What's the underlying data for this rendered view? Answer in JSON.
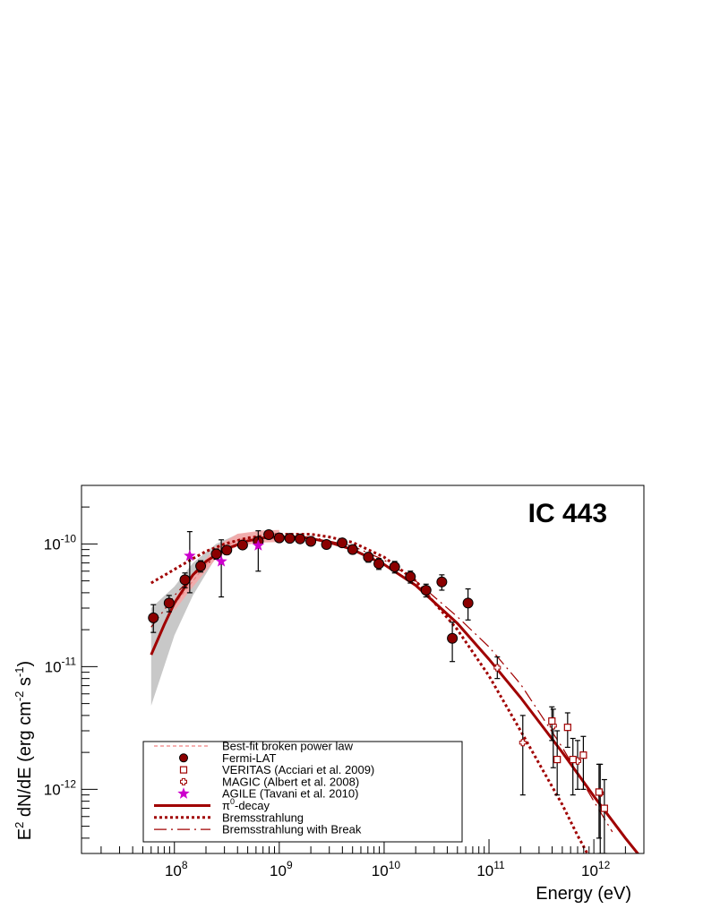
{
  "chart_data": {
    "type": "scatter",
    "title": "",
    "annotation": "IC 443",
    "xlabel": "Energy (eV)",
    "ylabel_parts": [
      "E",
      "2",
      " dN/dE (erg cm",
      "-2",
      " s",
      "-1",
      ")"
    ],
    "xscale": "log",
    "yscale": "log",
    "xlim": [
      13000000.0,
      3000000000000.0
    ],
    "ylim": [
      3e-13,
      3e-10
    ],
    "x_tick_labels": [
      {
        "base": "10",
        "exp": "8",
        "value": 100000000.0
      },
      {
        "base": "10",
        "exp": "9",
        "value": 1000000000.0
      },
      {
        "base": "10",
        "exp": "10",
        "value": 10000000000.0
      },
      {
        "base": "10",
        "exp": "11",
        "value": 100000000000.0
      },
      {
        "base": "10",
        "exp": "12",
        "value": 1000000000000.0
      }
    ],
    "y_tick_labels": [
      {
        "base": "10",
        "exp": "-10",
        "value": 1e-10
      },
      {
        "base": "10",
        "exp": "-11",
        "value": 1e-11
      },
      {
        "base": "10",
        "exp": "-12",
        "value": 1e-12
      }
    ],
    "grid": false,
    "legend_position": "bottom-left",
    "colors": {
      "dark_red": "#a00000",
      "fermi_fill": "#8b0000",
      "agile": "#cc00cc",
      "band_gray": "#c8c8c8",
      "band_pink": "#f4a8a8",
      "broken_pl": "#f08080"
    },
    "legend": [
      {
        "label": "Best-fit broken power law",
        "style": "broken_pl"
      },
      {
        "label": "Fermi-LAT",
        "style": "fermi"
      },
      {
        "label": "VERITAS (Acciari et al. 2009)",
        "style": "veritas"
      },
      {
        "label": "MAGIC (Albert et al. 2008)",
        "style": "magic"
      },
      {
        "label": "AGILE (Tavani et al. 2010)",
        "style": "agile"
      },
      {
        "label_parts": [
          "π",
          "0",
          "-decay"
        ],
        "style": "pion"
      },
      {
        "label": "Bremsstrahlung",
        "style": "brems"
      },
      {
        "label": "Bremsstrahlung with Break",
        "style": "brems_break"
      }
    ],
    "uncertainty_band": {
      "x": [
        60000000.0,
        100000000.0,
        150000000.0,
        250000000.0,
        400000000.0,
        700000000.0,
        1000000000.0
      ],
      "lower": [
        4.8e-12,
        1.8e-11,
        3.8e-11,
        7.8e-11,
        1.02e-10,
        1.07e-10,
        1.08e-10
      ],
      "upper": [
        3e-11,
        4.5e-11,
        7e-11,
        1e-10,
        1.2e-10,
        1.25e-10,
        1.24e-10
      ]
    },
    "series": [
      {
        "name": "Fermi-LAT",
        "marker": "filled-circle",
        "x": [
          63000000.0,
          89000000.0,
          126000000.0,
          178000000.0,
          251000000.0,
          316000000.0,
          447000000.0,
          631000000.0,
          794000000.0,
          1000000000.0,
          1260000000.0,
          1580000000.0,
          2000000000.0,
          2820000000.0,
          3980000000.0,
          5010000000.0,
          7080000000.0,
          8910000000.0,
          12600000000.0,
          17800000000.0,
          25100000000.0,
          35500000000.0,
          44700000000.0,
          63100000000.0
        ],
        "y": [
          2.5e-11,
          3.3e-11,
          5.1e-11,
          6.6e-11,
          8.3e-11,
          8.9e-11,
          9.8e-11,
          1.05e-10,
          1.19e-10,
          1.12e-10,
          1.11e-10,
          1.1e-10,
          1.05e-10,
          9.9e-11,
          1.02e-10,
          9e-11,
          7.8e-11,
          6.9e-11,
          6.5e-11,
          5.4e-11,
          4.2e-11,
          4.9e-11,
          1.7e-11,
          3.3e-11
        ],
        "yerr_low": [
          1.9e-11,
          2.8e-11,
          4.4e-11,
          5.9e-11,
          7.5e-11,
          8.2e-11,
          9.1e-11,
          9.8e-11,
          1.13e-10,
          1.06e-10,
          1.05e-10,
          1.04e-10,
          9.9e-11,
          9.3e-11,
          9.5e-11,
          8.3e-11,
          7.1e-11,
          6.2e-11,
          5.8e-11,
          4.8e-11,
          3.7e-11,
          4.2e-11,
          1.1e-11,
          2.4e-11
        ],
        "yerr_high": [
          3.2e-11,
          3.8e-11,
          5.8e-11,
          7.3e-11,
          9.1e-11,
          9.6e-11,
          1.05e-10,
          1.12e-10,
          1.25e-10,
          1.18e-10,
          1.17e-10,
          1.16e-10,
          1.11e-10,
          1.05e-10,
          1.09e-10,
          9.7e-11,
          8.5e-11,
          7.6e-11,
          7.2e-11,
          6e-11,
          4.7e-11,
          5.6e-11,
          2.3e-11,
          4.3e-11
        ]
      },
      {
        "name": "VERITAS (Acciari et al. 2009)",
        "marker": "open-square",
        "x": [
          398000000000.0,
          447000000000.0,
          562000000000.0,
          631000000000.0,
          794000000000.0,
          1120000000000.0,
          1260000000000.0
        ],
        "y": [
          3.6e-12,
          1.75e-12,
          3.2e-12,
          1.75e-12,
          1.9e-12,
          9.5e-13,
          7e-13
        ],
        "yerr_low": [
          2.5e-12,
          9e-13,
          2.2e-12,
          9e-13,
          1e-12,
          4e-13,
          3e-13
        ],
        "yerr_high": [
          4.7e-12,
          3e-12,
          4.2e-12,
          2.6e-12,
          2.7e-12,
          1.6e-12,
          1.2e-12
        ]
      },
      {
        "name": "MAGIC (Albert et al. 2008)",
        "marker": "open-cross",
        "x": [
          120000000000.0,
          210000000000.0,
          410000000000.0,
          700000000000.0,
          1150000000000.0
        ],
        "y": [
          9.8e-12,
          2.4e-12,
          3.3e-12,
          1.7e-12,
          9.3e-13
        ],
        "yerr_low": [
          8e-12,
          9e-13,
          1.5e-12,
          1e-12,
          3e-13
        ],
        "yerr_high": [
          1.2e-11,
          4e-12,
          4.5e-12,
          2.5e-12,
          1.6e-12
        ]
      },
      {
        "name": "AGILE (Tavani et al. 2010)",
        "marker": "star",
        "x": [
          140000000.0,
          280000000.0,
          630000000.0
        ],
        "y": [
          8e-11,
          7.2e-11,
          9.7e-11
        ],
        "yerr_low": [
          4e-11,
          3.7e-11,
          6e-11
        ],
        "yerr_high": [
          1.26e-10,
          1.08e-10,
          1.28e-10
        ]
      },
      {
        "name": "Best-fit broken power law",
        "marker": "dashed-line",
        "x": [
          100000000.0,
          150000000.0,
          250000000.0,
          400000000.0,
          700000000.0,
          1000000000.0
        ],
        "y": [
          3.2e-11,
          5e-11,
          8.5e-11,
          1.08e-10,
          1.15e-10,
          1.16e-10
        ]
      },
      {
        "name": "π0-decay",
        "marker": "solid-line",
        "x": [
          60000000.0,
          80000000.0,
          100000000.0,
          150000000.0,
          200000000.0,
          300000000.0,
          500000000.0,
          700000000.0,
          1000000000.0,
          1500000000.0,
          2000000000.0,
          3000000000.0,
          5000000000.0,
          10000000000.0,
          20000000000.0,
          50000000000.0,
          100000000000.0,
          200000000000.0,
          500000000000.0,
          1000000000000.0,
          2000000000000.0,
          3000000000000.0
        ],
        "y": [
          1.25e-11,
          2.2e-11,
          3.3e-11,
          5.6e-11,
          7.2e-11,
          9e-11,
          1.06e-10,
          1.12e-10,
          1.14e-10,
          1.14e-10,
          1.11e-10,
          1.03e-10,
          9e-11,
          6.8e-11,
          4.6e-11,
          2.25e-11,
          1.15e-11,
          5.6e-12,
          2e-12,
          8.8e-13,
          4e-13,
          2.6e-13
        ]
      },
      {
        "name": "Bremsstrahlung",
        "marker": "dotted-line",
        "x": [
          60000000.0,
          100000000.0,
          150000000.0,
          200000000.0,
          300000000.0,
          500000000.0,
          1000000000.0,
          2000000000.0,
          3000000000.0,
          5000000000.0,
          10000000000.0,
          20000000000.0,
          50000000000.0,
          100000000000.0,
          200000000000.0,
          500000000000.0,
          700000000000.0,
          1000000000000.0
        ],
        "y": [
          4.8e-11,
          6.2e-11,
          7.6e-11,
          8.7e-11,
          1e-10,
          1.12e-10,
          1.2e-10,
          1.2e-10,
          1.14e-10,
          1.03e-10,
          7.8e-11,
          5e-11,
          2e-11,
          8.4e-12,
          3e-12,
          7.5e-13,
          4.2e-13,
          2.4e-13
        ]
      },
      {
        "name": "Bremsstrahlung with Break",
        "marker": "dash-dot-line",
        "x": [
          60000000.0,
          80000000.0,
          100000000.0,
          150000000.0,
          200000000.0,
          300000000.0,
          500000000.0,
          1000000000.0,
          2000000000.0,
          5000000000.0,
          10000000000.0,
          20000000000.0,
          50000000000.0,
          100000000000.0,
          200000000000.0,
          500000000000.0,
          1000000000000.0,
          1500000000000.0
        ],
        "y": [
          2.1e-11,
          2.9e-11,
          3.8e-11,
          5.5e-11,
          6.8e-11,
          8.7e-11,
          1.06e-10,
          1.15e-10,
          1.14e-10,
          9.6e-11,
          7.4e-11,
          5e-11,
          2.55e-11,
          1.45e-11,
          7.2e-12,
          2.2e-12,
          8e-13,
          4.5e-13
        ]
      }
    ]
  }
}
